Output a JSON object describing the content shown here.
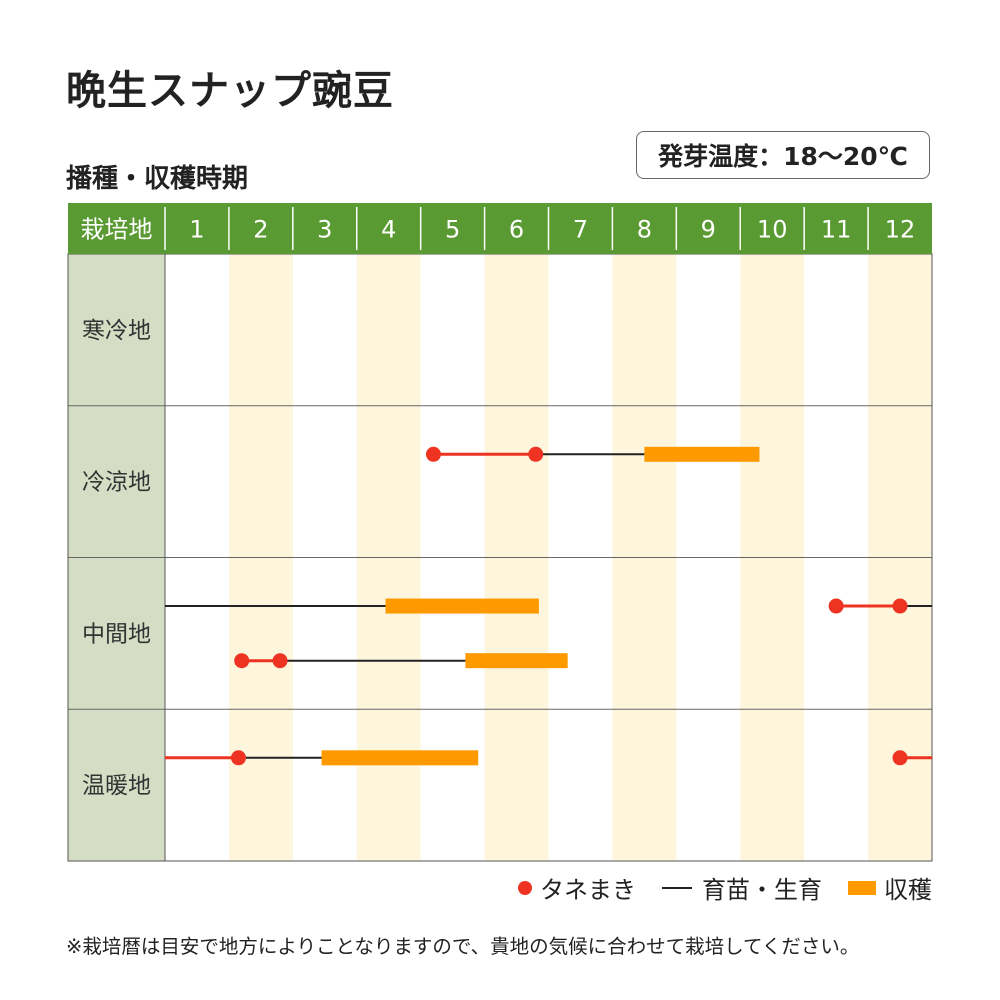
{
  "title": "晩生スナップ豌豆",
  "subtitle": "播種・収穫時期",
  "germination": "発芽温度：18～20℃",
  "header_label": "栽培地",
  "months": [
    "1",
    "2",
    "3",
    "4",
    "5",
    "6",
    "7",
    "8",
    "9",
    "10",
    "11",
    "12"
  ],
  "colors": {
    "header_bg": "#5a9a32",
    "label_bg": "#d5dec5",
    "stripe": "#fdf5dc",
    "sowing": "#ee3322",
    "growing": "#222222",
    "harvest": "#ff9900"
  },
  "legend": {
    "sowing": "タネまき",
    "growing": "育苗・生育",
    "harvest": "収穫"
  },
  "note": "※栽培暦は目安で地方によりことなりますので、貴地の気候に合わせて栽培してください。",
  "chart_data": {
    "type": "gantt",
    "x_axis": "month",
    "regions": [
      {
        "name": "寒冷地",
        "rows": []
      },
      {
        "name": "冷涼地",
        "rows": [
          {
            "sowing": [
              [
                4.2,
                5.8
              ]
            ],
            "growing": [
              [
                5.8,
                7.5
              ]
            ],
            "harvest": [
              [
                7.5,
                9.3
              ]
            ]
          }
        ]
      },
      {
        "name": "中間地",
        "rows": [
          {
            "sowing": [
              [
                10.5,
                11.5
              ]
            ],
            "growing": [
              [
                0.0,
                3.45
              ],
              [
                11.5,
                12.0
              ]
            ],
            "harvest": [
              [
                3.45,
                5.85
              ]
            ]
          },
          {
            "sowing": [
              [
                1.2,
                1.8
              ]
            ],
            "growing": [
              [
                1.8,
                4.7
              ]
            ],
            "harvest": [
              [
                4.7,
                6.3
              ]
            ]
          }
        ]
      },
      {
        "name": "温暖地",
        "rows": [
          {
            "sowing": [
              [
                0.0,
                1.15
              ],
              [
                11.5,
                12.0
              ]
            ],
            "growing": [
              [
                1.15,
                2.45
              ]
            ],
            "harvest": [
              [
                2.45,
                4.9
              ]
            ]
          }
        ]
      }
    ]
  }
}
